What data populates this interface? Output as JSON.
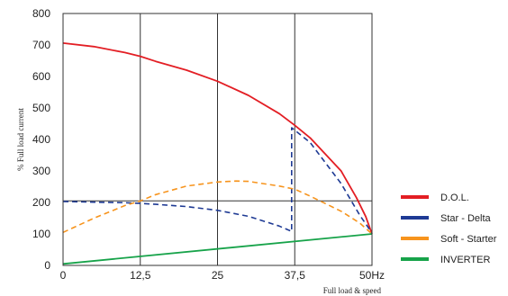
{
  "chart_data": {
    "type": "line",
    "xlabel": "Full load & speed",
    "ylabel": "% Full load current",
    "xlim": [
      0,
      50
    ],
    "ylim": [
      0,
      800
    ],
    "x_ticks": [
      {
        "value": 0,
        "label": "0"
      },
      {
        "value": 12.5,
        "label": "12,5"
      },
      {
        "value": 25,
        "label": "25"
      },
      {
        "value": 37.5,
        "label": "37,5"
      },
      {
        "value": 50,
        "label": "50Hz"
      }
    ],
    "y_ticks": [
      0,
      100,
      200,
      300,
      400,
      500,
      600,
      700,
      800
    ],
    "vertical_gridlines_at": [
      12.5,
      25,
      37.5
    ],
    "reference_line_y": 205,
    "legend_position": "right",
    "series": [
      {
        "name": "D.O.L.",
        "color": "#e31e24",
        "style": "solid",
        "points": [
          [
            0,
            706
          ],
          [
            5,
            695
          ],
          [
            10,
            676
          ],
          [
            12.5,
            664
          ],
          [
            15,
            648
          ],
          [
            20,
            620
          ],
          [
            25,
            585
          ],
          [
            30,
            540
          ],
          [
            35,
            482
          ],
          [
            37.5,
            445
          ],
          [
            40,
            405
          ],
          [
            45,
            300
          ],
          [
            47.5,
            215
          ],
          [
            49,
            155
          ],
          [
            50,
            100
          ]
        ]
      },
      {
        "name": "Star - Delta",
        "color": "#1e3a94",
        "style": "dashed",
        "points": [
          [
            0,
            203
          ],
          [
            5,
            201
          ],
          [
            10,
            199
          ],
          [
            12.5,
            197
          ],
          [
            15,
            194
          ],
          [
            20,
            187
          ],
          [
            25,
            175
          ],
          [
            30,
            156
          ],
          [
            35,
            125
          ],
          [
            37,
            108
          ],
          [
            37,
            437
          ],
          [
            40,
            390
          ],
          [
            45,
            260
          ],
          [
            48,
            160
          ],
          [
            50,
            103
          ]
        ]
      },
      {
        "name": "Soft - Starter",
        "color": "#f7941d",
        "style": "dashed",
        "points": [
          [
            0,
            105
          ],
          [
            5,
            150
          ],
          [
            10,
            190
          ],
          [
            12.5,
            205
          ],
          [
            15,
            225
          ],
          [
            20,
            252
          ],
          [
            25,
            265
          ],
          [
            28,
            268
          ],
          [
            30,
            267
          ],
          [
            35,
            252
          ],
          [
            37.5,
            242
          ],
          [
            40,
            220
          ],
          [
            45,
            172
          ],
          [
            48,
            135
          ],
          [
            50,
            100
          ]
        ]
      },
      {
        "name": "INVERTER",
        "color": "#17a34a",
        "style": "solid",
        "points": [
          [
            0,
            5
          ],
          [
            50,
            100
          ]
        ]
      }
    ]
  }
}
